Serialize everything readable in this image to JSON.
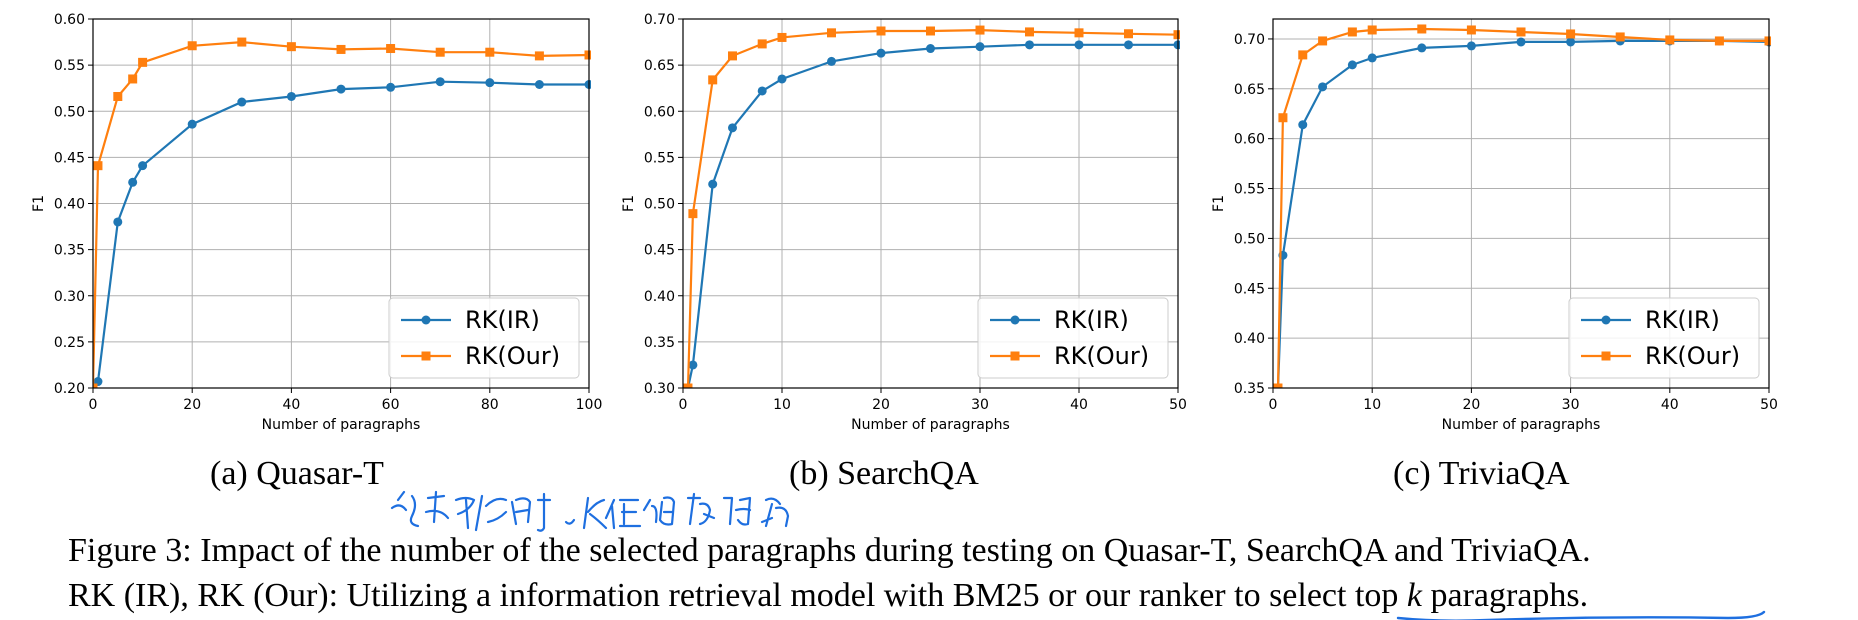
{
  "colors": {
    "series_ir": "#1f77b4",
    "series_our": "#ff7f0e",
    "grid": "#b0b0b0",
    "annotation_ink": "#1e6fe0"
  },
  "chart_data": [
    {
      "type": "line",
      "xlabel": "Number of paragraphs",
      "ylabel": "F1",
      "xlim": [
        0,
        100
      ],
      "ylim": [
        0.2,
        0.6
      ],
      "xticks": [
        "0",
        "20",
        "40",
        "60",
        "80",
        "100"
      ],
      "yticks": [
        "0.20",
        "0.25",
        "0.30",
        "0.35",
        "0.40",
        "0.45",
        "0.50",
        "0.55",
        "0.60"
      ],
      "grid": true,
      "legend_position": "lower-right",
      "series": [
        {
          "name": "RK(IR)",
          "marker": "circle",
          "x": [
            1,
            5,
            8,
            10,
            20,
            30,
            40,
            50,
            60,
            70,
            80,
            90,
            100
          ],
          "y": [
            0.207,
            0.38,
            0.423,
            0.441,
            0.486,
            0.51,
            0.516,
            0.524,
            0.526,
            0.532,
            0.531,
            0.529,
            0.529
          ]
        },
        {
          "name": "RK(Our)",
          "marker": "square",
          "x": [
            0,
            1,
            5,
            8,
            10,
            20,
            30,
            40,
            50,
            60,
            70,
            80,
            90,
            100
          ],
          "y": [
            0.2,
            0.441,
            0.516,
            0.535,
            0.553,
            0.571,
            0.575,
            0.57,
            0.567,
            0.568,
            0.564,
            0.564,
            0.56,
            0.561
          ]
        }
      ]
    },
    {
      "type": "line",
      "xlabel": "Number of paragraphs",
      "ylabel": "F1",
      "xlim": [
        0,
        50
      ],
      "ylim": [
        0.3,
        0.7
      ],
      "xticks": [
        "0",
        "10",
        "20",
        "30",
        "40",
        "50"
      ],
      "yticks": [
        "0.30",
        "0.35",
        "0.40",
        "0.45",
        "0.50",
        "0.55",
        "0.60",
        "0.65",
        "0.70"
      ],
      "grid": true,
      "legend_position": "lower-right",
      "series": [
        {
          "name": "RK(IR)",
          "marker": "circle",
          "x": [
            0.5,
            1,
            3,
            5,
            8,
            10,
            15,
            20,
            25,
            30,
            35,
            40,
            45,
            50
          ],
          "y": [
            0.3,
            0.325,
            0.521,
            0.582,
            0.622,
            0.635,
            0.654,
            0.663,
            0.668,
            0.67,
            0.672,
            0.672,
            0.672,
            0.672
          ]
        },
        {
          "name": "RK(Our)",
          "marker": "square",
          "x": [
            0.5,
            1,
            3,
            5,
            8,
            10,
            15,
            20,
            25,
            30,
            35,
            40,
            45,
            50
          ],
          "y": [
            0.3,
            0.489,
            0.634,
            0.66,
            0.673,
            0.68,
            0.685,
            0.687,
            0.687,
            0.688,
            0.686,
            0.685,
            0.684,
            0.683
          ]
        }
      ]
    },
    {
      "type": "line",
      "xlabel": "Number of paragraphs",
      "ylabel": "F1",
      "xlim": [
        0,
        50
      ],
      "ylim": [
        0.35,
        0.72
      ],
      "xticks": [
        "0",
        "10",
        "20",
        "30",
        "40",
        "50"
      ],
      "yticks": [
        "0.35",
        "0.40",
        "0.45",
        "0.50",
        "0.55",
        "0.60",
        "0.65",
        "0.70"
      ],
      "grid": true,
      "legend_position": "lower-right",
      "series": [
        {
          "name": "RK(IR)",
          "marker": "circle",
          "x": [
            0.5,
            1,
            3,
            5,
            8,
            10,
            15,
            20,
            25,
            30,
            35,
            40,
            45,
            50
          ],
          "y": [
            0.35,
            0.483,
            0.614,
            0.652,
            0.674,
            0.681,
            0.691,
            0.693,
            0.697,
            0.697,
            0.698,
            0.698,
            0.698,
            0.697
          ]
        },
        {
          "name": "RK(Our)",
          "marker": "square",
          "x": [
            0.5,
            1,
            3,
            5,
            8,
            10,
            15,
            20,
            25,
            30,
            35,
            40,
            45,
            50
          ],
          "y": [
            0.35,
            0.621,
            0.684,
            0.698,
            0.707,
            0.709,
            0.71,
            0.709,
            0.707,
            0.705,
            0.702,
            0.699,
            0.698,
            0.698
          ]
        }
      ]
    }
  ],
  "subcaptions": [
    "(a)  Quasar-T",
    "(b)  SearchQA",
    "(c)  TriviaQA"
  ],
  "caption": {
    "line1": "Figure 3: Impact of the number of the selected paragraphs during testing on Quasar-T, SearchQA and TriviaQA.",
    "line2_prefix": "RK (IR), RK (Our): Utilizing a information retrieval model with BM25 or our ranker to select top ",
    "line2_k": "k",
    "line2_suffix": " paragraphs."
  },
  "handwritten_note": "选取K时，K值的影响"
}
